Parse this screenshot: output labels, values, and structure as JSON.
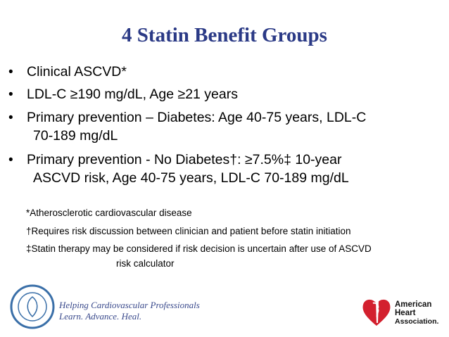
{
  "title": "4 Statin Benefit Groups",
  "bullets": [
    {
      "lines": [
        "Clinical ASCVD*"
      ]
    },
    {
      "lines": [
        "LDL-C ≥190 mg/dL, Age ≥21 years"
      ]
    },
    {
      "lines": [
        "Primary prevention – Diabetes: Age 40-75 years, LDL-C",
        "70-189 mg/dL"
      ]
    },
    {
      "lines": [
        "Primary prevention - No Diabetes†: ≥7.5%‡ 10-year",
        "ASCVD risk, Age 40-75 years, LDL-C 70-189 mg/dL"
      ]
    }
  ],
  "footnotes": [
    {
      "lines": [
        "*Atherosclerotic cardiovascular disease"
      ]
    },
    {
      "lines": [
        "†Requires risk discussion between clinician and patient before statin initiation"
      ]
    },
    {
      "lines": [
        "‡Statin therapy may be considered if risk decision is uncertain after  use of  ASCVD",
        "risk calculator"
      ]
    }
  ],
  "footer": {
    "tagline": [
      "Helping Cardiovascular Professionals",
      "Learn. Advance. Heal."
    ],
    "aha_logo": [
      "American",
      "Heart",
      "Association."
    ]
  }
}
